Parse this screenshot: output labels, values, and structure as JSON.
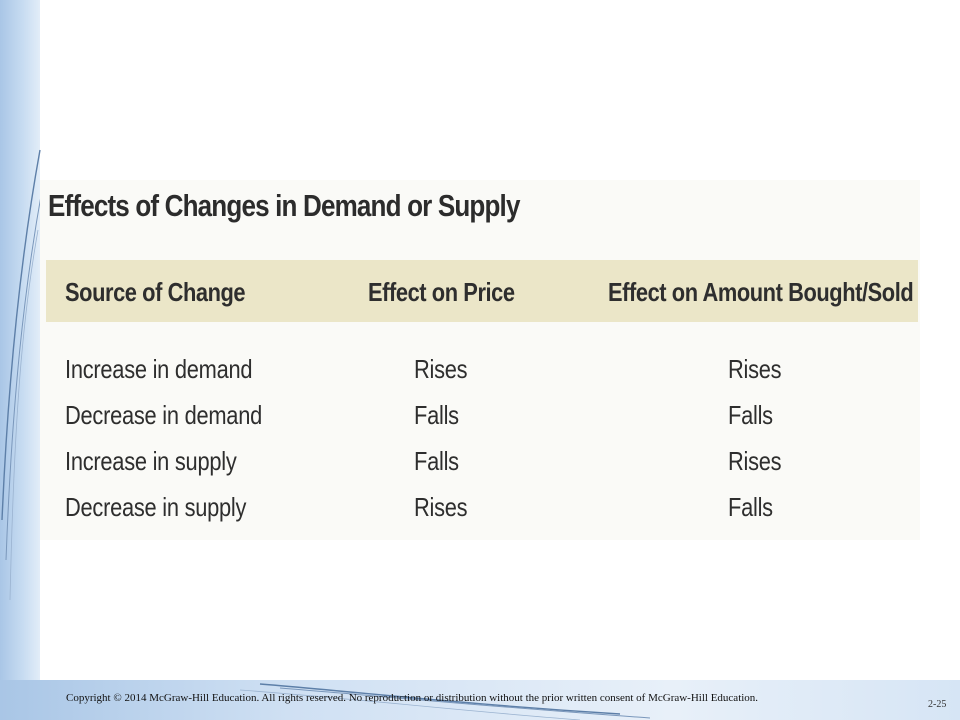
{
  "slide": {
    "title": "Effects of Changes in Demand or Supply",
    "table": {
      "headers": [
        "Source of Change",
        "Effect on Price",
        "Effect on Amount Bought/Sold"
      ],
      "rows": [
        [
          "Increase in demand",
          "Rises",
          "Rises"
        ],
        [
          "Decrease in demand",
          "Falls",
          "Falls"
        ],
        [
          "Increase in supply",
          "Falls",
          "Rises"
        ],
        [
          "Decrease in supply",
          "Rises",
          "Falls"
        ]
      ]
    },
    "footer": {
      "copyright": "Copyright © 2014 McGraw-Hill Education. All rights reserved. No reproduction or distribution without the prior written consent of McGraw-Hill Education.",
      "slide_number": "2-25"
    }
  },
  "colors": {
    "header_fill": "#ebe6c8",
    "side_band": "#c6dbf1",
    "text": "#2e2e2e"
  }
}
